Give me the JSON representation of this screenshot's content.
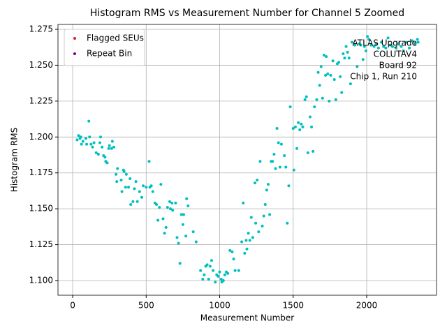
{
  "chart_data": {
    "type": "scatter",
    "title": "Histogram RMS vs Measurement Number for Channel 5 Zoomed",
    "xlabel": "Measurement Number",
    "ylabel": "Histogram RMS",
    "annotation": [
      "ATLAS Upgrade",
      "COLUTAV4",
      "Board 92",
      "Chip 1, Run 210"
    ],
    "xlim": [
      -100,
      2475
    ],
    "ylim": [
      1.0898,
      1.2784
    ],
    "xticks": [
      0,
      500,
      1000,
      1500,
      2000
    ],
    "yticks": [
      {
        "value": 1.1,
        "label": "1.100"
      },
      {
        "value": 1.125,
        "label": "1.125"
      },
      {
        "value": 1.15,
        "label": "1.150"
      },
      {
        "value": 1.175,
        "label": "1.175"
      },
      {
        "value": 1.2,
        "label": "1.200"
      },
      {
        "value": 1.225,
        "label": "1.225"
      },
      {
        "value": 1.25,
        "label": "1.250"
      },
      {
        "value": 1.275,
        "label": "1.275"
      }
    ],
    "grid": true,
    "legend": "upper left",
    "series": [
      {
        "color": "#00bfbf",
        "x": [
          30,
          40,
          50,
          55,
          60,
          70,
          90,
          95,
          110,
          115,
          125,
          135,
          145,
          160,
          175,
          185,
          190,
          200,
          210,
          220,
          225,
          235,
          245,
          250,
          265,
          270,
          280,
          295,
          300,
          305,
          330,
          335,
          345,
          350,
          360,
          365,
          380,
          390,
          395,
          410,
          420,
          430,
          440,
          455,
          470,
          480,
          500,
          520,
          525,
          535,
          545,
          560,
          570,
          580,
          590,
          600,
          615,
          625,
          635,
          645,
          660,
          665,
          675,
          680,
          700,
          710,
          720,
          730,
          740,
          750,
          755,
          770,
          775,
          785,
          820,
          840,
          870,
          885,
          895,
          905,
          915,
          925,
          935,
          945,
          955,
          970,
          980,
          990,
          1000,
          1010,
          1015,
          1025,
          1035,
          1045,
          1055,
          1070,
          1085,
          1095,
          1105,
          1130,
          1150,
          1160,
          1170,
          1180,
          1185,
          1195,
          1205,
          1215,
          1225,
          1240,
          1245,
          1255,
          1265,
          1275,
          1290,
          1300,
          1310,
          1320,
          1330,
          1340,
          1350,
          1360,
          1370,
          1380,
          1390,
          1400,
          1410,
          1420,
          1440,
          1450,
          1460,
          1470,
          1480,
          1500,
          1505,
          1515,
          1525,
          1535,
          1545,
          1555,
          1565,
          1580,
          1590,
          1600,
          1615,
          1625,
          1635,
          1645,
          1660,
          1670,
          1680,
          1690,
          1700,
          1710,
          1720,
          1725,
          1735,
          1745,
          1755,
          1770,
          1780,
          1790,
          1800,
          1810,
          1820,
          1830,
          1840,
          1850,
          1860,
          1870,
          1880,
          1890,
          1900,
          1920,
          1935,
          1950,
          1960,
          1975,
          1985,
          1995,
          2005,
          2015,
          2030,
          2050,
          2065,
          2080,
          2100,
          2115,
          2130,
          2145,
          2160,
          2175,
          2200,
          2215,
          2235,
          2250,
          2270,
          2290,
          2310,
          2330,
          2345,
          2350
        ],
        "values": [
          1.198,
          1.201,
          1.199,
          1.2,
          1.195,
          1.197,
          1.199,
          1.195,
          1.211,
          1.2,
          1.195,
          1.193,
          1.196,
          1.189,
          1.188,
          1.196,
          1.2,
          1.193,
          1.187,
          1.186,
          1.183,
          1.182,
          1.192,
          1.194,
          1.192,
          1.197,
          1.193,
          1.174,
          1.169,
          1.178,
          1.17,
          1.162,
          1.177,
          1.176,
          1.165,
          1.174,
          1.165,
          1.171,
          1.153,
          1.155,
          1.164,
          1.169,
          1.155,
          1.162,
          1.158,
          1.166,
          1.165,
          1.183,
          1.165,
          1.166,
          1.162,
          1.154,
          1.153,
          1.142,
          1.151,
          1.167,
          1.143,
          1.133,
          1.137,
          1.151,
          1.155,
          1.15,
          1.154,
          1.149,
          1.154,
          1.13,
          1.126,
          1.112,
          1.146,
          1.139,
          1.146,
          1.131,
          1.157,
          1.152,
          1.134,
          1.127,
          1.107,
          1.101,
          1.104,
          1.11,
          1.111,
          1.101,
          1.11,
          1.114,
          1.107,
          1.099,
          1.104,
          1.103,
          1.106,
          1.101,
          1.099,
          1.1,
          1.104,
          1.106,
          1.105,
          1.121,
          1.12,
          1.115,
          1.107,
          1.107,
          1.127,
          1.154,
          1.119,
          1.128,
          1.122,
          1.133,
          1.128,
          1.144,
          1.13,
          1.168,
          1.14,
          1.17,
          1.134,
          1.183,
          1.138,
          1.145,
          1.153,
          1.163,
          1.167,
          1.146,
          1.183,
          1.183,
          1.188,
          1.178,
          1.206,
          1.196,
          1.179,
          1.195,
          1.187,
          1.179,
          1.14,
          1.166,
          1.221,
          1.206,
          1.177,
          1.207,
          1.192,
          1.21,
          1.205,
          1.209,
          1.207,
          1.226,
          1.228,
          1.189,
          1.214,
          1.207,
          1.19,
          1.221,
          1.226,
          1.245,
          1.236,
          1.249,
          1.227,
          1.257,
          1.243,
          1.256,
          1.244,
          1.225,
          1.243,
          1.253,
          1.24,
          1.226,
          1.251,
          1.252,
          1.242,
          1.231,
          1.258,
          1.255,
          1.263,
          1.259,
          1.255,
          1.237,
          1.266,
          1.264,
          1.249,
          1.265,
          1.264,
          1.254,
          1.263,
          1.26,
          1.27,
          1.268,
          1.264,
          1.263,
          1.265,
          1.262,
          1.266,
          1.263,
          1.262,
          1.269,
          1.264,
          1.263,
          1.262,
          1.265,
          1.263,
          1.26,
          1.266,
          1.262,
          1.267,
          1.265,
          1.268,
          1.266
        ]
      },
      {
        "name": "Flagged SEUs",
        "color": "#d62728",
        "x": [],
        "values": []
      },
      {
        "name": "Repeat Bin",
        "color": "#800080",
        "x": [],
        "values": []
      }
    ]
  }
}
